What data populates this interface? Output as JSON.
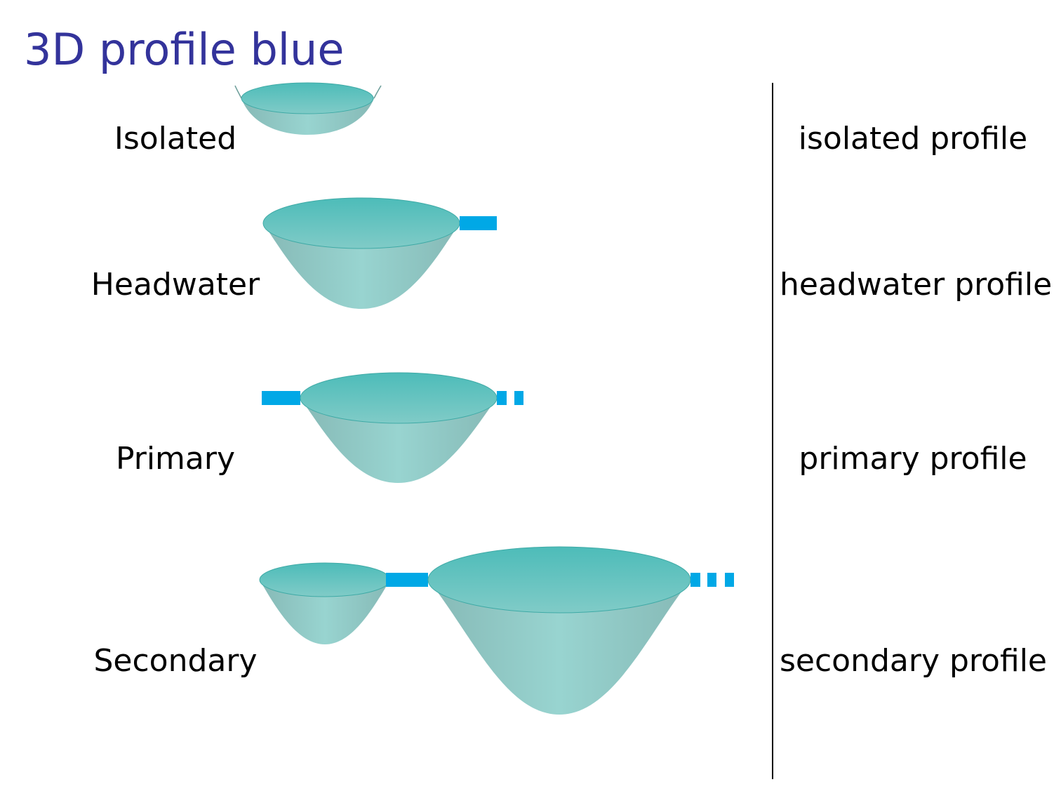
{
  "title": "3D profile blue",
  "colors": {
    "title": "#33339b",
    "water_top_dark": "#4fbdbb",
    "water_top_light": "#7ccbc8",
    "water_body_edge": "#86bebb",
    "water_body_mid": "#9ad4d0",
    "connector": "#00a8e6"
  },
  "rows": [
    {
      "label": "Isolated",
      "profile": "isolated profile"
    },
    {
      "label": "Headwater",
      "profile": "headwater profile"
    },
    {
      "label": "Primary",
      "profile": "primary profile"
    },
    {
      "label": "Secondary",
      "profile": "secondary profile"
    }
  ]
}
